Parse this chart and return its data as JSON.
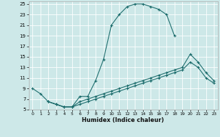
{
  "xlabel": "Humidex (Indice chaleur)",
  "bg_color": "#cde8e8",
  "line_color": "#1a6b6b",
  "grid_color": "#ffffff",
  "xlim": [
    -0.5,
    23.5
  ],
  "ylim": [
    5,
    25.5
  ],
  "xticks": [
    0,
    1,
    2,
    3,
    4,
    5,
    6,
    7,
    8,
    9,
    10,
    11,
    12,
    13,
    14,
    15,
    16,
    17,
    18,
    19,
    20,
    21,
    22,
    23
  ],
  "yticks": [
    5,
    7,
    9,
    11,
    13,
    15,
    17,
    19,
    21,
    23,
    25
  ],
  "line1_x": [
    0,
    1,
    2,
    3,
    4,
    5,
    6,
    7,
    8,
    9,
    10,
    11,
    12,
    13,
    14,
    15,
    16,
    17,
    18
  ],
  "line1_y": [
    9,
    8,
    6.5,
    6,
    5.5,
    5.5,
    7.5,
    7.5,
    10.5,
    14.5,
    21,
    23,
    24.5,
    25,
    25,
    24.5,
    24,
    23,
    19
  ],
  "line2_x": [
    2,
    3,
    4,
    5,
    6,
    7,
    8,
    9,
    10,
    11,
    12,
    13,
    14,
    15,
    16,
    17,
    18,
    19,
    20,
    21,
    22,
    23
  ],
  "line2_y": [
    6.5,
    6,
    5.5,
    5.5,
    6.5,
    7,
    7.5,
    8,
    8.5,
    9,
    9.5,
    10,
    10.5,
    11,
    11.5,
    12,
    12.5,
    13,
    15.5,
    14,
    12,
    10.5
  ],
  "line3_x": [
    2,
    3,
    4,
    5,
    6,
    7,
    8,
    9,
    10,
    11,
    12,
    13,
    14,
    15,
    16,
    17,
    18,
    19,
    20,
    21,
    22,
    23
  ],
  "line3_y": [
    6.5,
    6,
    5.5,
    5.5,
    6,
    6.5,
    7,
    7.5,
    8,
    8.5,
    9,
    9.5,
    10,
    10.5,
    11,
    11.5,
    12,
    12.5,
    14,
    13,
    11,
    10
  ]
}
